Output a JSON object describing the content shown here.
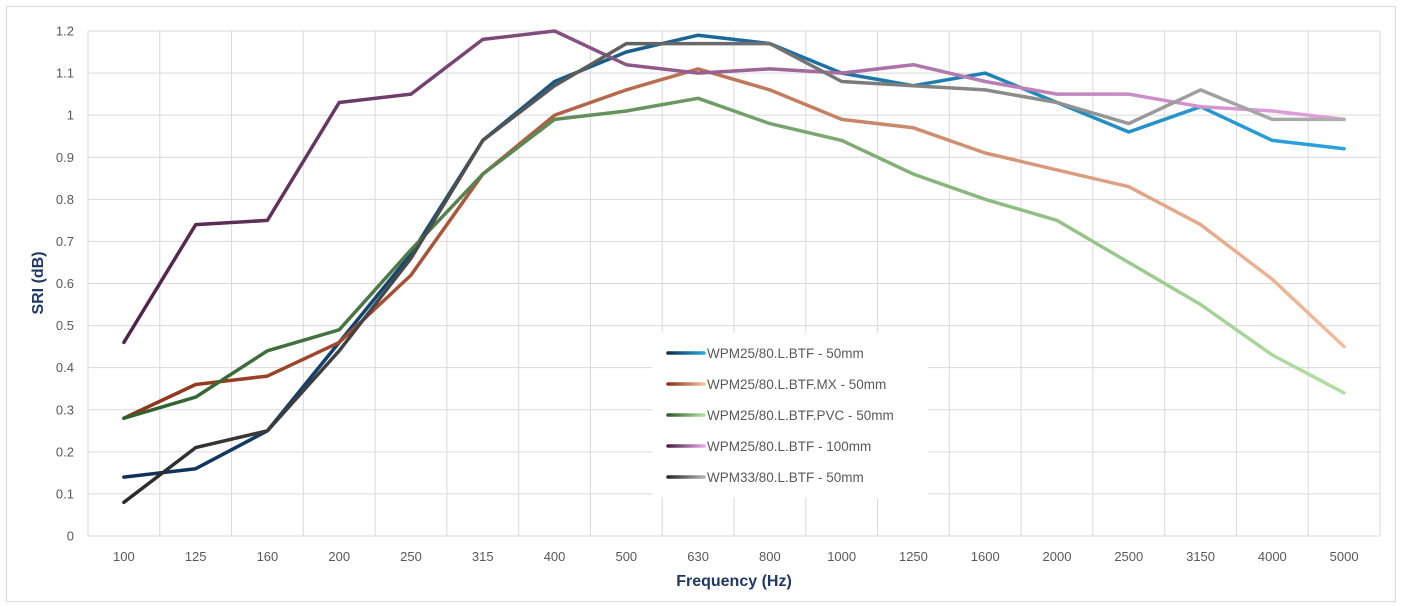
{
  "chart_data": {
    "type": "line",
    "title": "",
    "xlabel": "Frequency (Hz)",
    "ylabel": "SRI (dB)",
    "categories": [
      "100",
      "125",
      "160",
      "200",
      "250",
      "315",
      "400",
      "500",
      "630",
      "800",
      "1000",
      "1250",
      "1600",
      "2000",
      "2500",
      "3150",
      "4000",
      "5000"
    ],
    "ylim": [
      0,
      1.2
    ],
    "yticks": [
      "0",
      "0.1",
      "0.2",
      "0.3",
      "0.4",
      "0.5",
      "0.6",
      "0.7",
      "0.8",
      "0.9",
      "1",
      "1.1",
      "1.2"
    ],
    "grid": true,
    "legend_position": "center",
    "series": [
      {
        "name": "WPM25/80.L.BTF - 50mm",
        "color_start": "#0d2b52",
        "color_end": "#2aa8e0",
        "values": [
          0.14,
          0.16,
          0.25,
          0.46,
          0.67,
          0.94,
          1.08,
          1.15,
          1.19,
          1.17,
          1.1,
          1.07,
          1.1,
          1.03,
          0.96,
          1.02,
          0.94,
          0.92
        ]
      },
      {
        "name": "WPM25/80.L.BTF.MX - 50mm",
        "color_start": "#8b2e14",
        "color_end": "#f2c0a0",
        "values": [
          0.28,
          0.36,
          0.38,
          0.46,
          0.62,
          0.86,
          1.0,
          1.06,
          1.11,
          1.06,
          0.99,
          0.97,
          0.91,
          0.87,
          0.83,
          0.74,
          0.61,
          0.45
        ]
      },
      {
        "name": "WPM25/80.L.BTF.PVC - 50mm",
        "color_start": "#2d5a2a",
        "color_end": "#b6e3a5",
        "values": [
          0.28,
          0.33,
          0.44,
          0.49,
          0.68,
          0.86,
          0.99,
          1.01,
          1.04,
          0.98,
          0.94,
          0.86,
          0.8,
          0.75,
          0.65,
          0.55,
          0.43,
          0.34
        ]
      },
      {
        "name": "WPM25/80.L.BTF - 100mm",
        "color_start": "#4a1f44",
        "color_end": "#e8a6e4",
        "values": [
          0.46,
          0.74,
          0.75,
          1.03,
          1.05,
          1.18,
          1.2,
          1.12,
          1.1,
          1.11,
          1.1,
          1.12,
          1.08,
          1.05,
          1.05,
          1.02,
          1.01,
          0.99
        ]
      },
      {
        "name": "WPM33/80.L.BTF - 50mm",
        "color_start": "#262626",
        "color_end": "#b3b3b3",
        "values": [
          0.08,
          0.21,
          0.25,
          0.44,
          0.66,
          0.94,
          1.07,
          1.17,
          1.17,
          1.17,
          1.08,
          1.07,
          1.06,
          1.03,
          0.98,
          1.06,
          0.99,
          0.99
        ]
      }
    ]
  }
}
